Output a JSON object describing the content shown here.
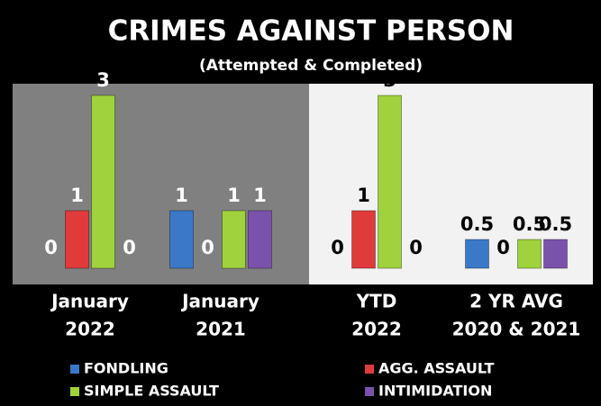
{
  "chart_data": {
    "type": "bar",
    "title": "CRIMES AGAINST PERSON",
    "subtitle": "(Attempted & Completed)",
    "categories": [
      [
        "January",
        "2022"
      ],
      [
        "January",
        "2021"
      ],
      [
        "YTD",
        "2022"
      ],
      [
        "2 YR AVG",
        "2020 & 2021"
      ]
    ],
    "series": [
      {
        "name": "FONDLING",
        "color": "#3b78c8",
        "values": [
          0,
          1,
          0,
          0.5
        ]
      },
      {
        "name": "AGG. ASSAULT",
        "color": "#e03b3b",
        "values": [
          1,
          0,
          1,
          0
        ]
      },
      {
        "name": "SIMPLE ASSAULT",
        "color": "#9fd23c",
        "values": [
          3,
          1,
          3,
          0.5
        ]
      },
      {
        "name": "INTIMIDATION",
        "color": "#7b52ab",
        "values": [
          0,
          1,
          0,
          0.5
        ]
      }
    ]
  }
}
